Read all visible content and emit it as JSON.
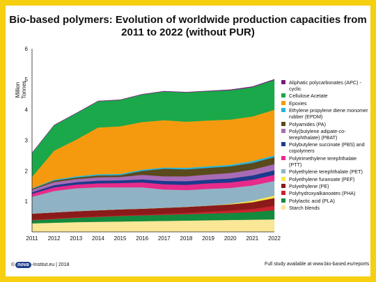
{
  "title": "Bio-based polymers: Evolution of worldwide production capacities from 2011 to 2022 (without PUR)",
  "footer": {
    "copyright": "©",
    "logo_text": "nova",
    "left_text": "-Institut.eu | 2018",
    "right_text": "Full study available at www.bio-based.eu/reports"
  },
  "chart_data": {
    "type": "area",
    "stacked": true,
    "title": "Bio-based polymers: Evolution of worldwide production capacities from 2011 to 2022 (without PUR)",
    "ylabel": "Million Tonnes",
    "xlabel": "",
    "ylim": [
      0,
      6
    ],
    "yticks": [
      1,
      2,
      3,
      4,
      5,
      6
    ],
    "x": [
      "2011",
      "2012",
      "2013",
      "2014",
      "2015",
      "2016",
      "2017",
      "2018",
      "2019",
      "2020",
      "2021",
      "2022"
    ],
    "grid": false,
    "legend_position": "right",
    "series": [
      {
        "name": "Starch blends",
        "color": "#f9e796",
        "values": [
          0.28,
          0.3,
          0.32,
          0.33,
          0.34,
          0.35,
          0.36,
          0.37,
          0.38,
          0.39,
          0.4,
          0.41
        ]
      },
      {
        "name": "Polylactic acid (PLA)",
        "color": "#138a3e",
        "values": [
          0.1,
          0.12,
          0.14,
          0.16,
          0.18,
          0.19,
          0.2,
          0.21,
          0.22,
          0.23,
          0.25,
          0.3
        ]
      },
      {
        "name": "Polyhydroxyalkanoates (PHA)",
        "color": "#c8242e",
        "values": [
          0.02,
          0.02,
          0.02,
          0.02,
          0.02,
          0.02,
          0.03,
          0.04,
          0.06,
          0.08,
          0.1,
          0.15
        ]
      },
      {
        "name": "Polyethylene (PE)",
        "color": "#8b1a1a",
        "values": [
          0.2,
          0.2,
          0.2,
          0.2,
          0.2,
          0.2,
          0.2,
          0.2,
          0.2,
          0.2,
          0.22,
          0.25
        ]
      },
      {
        "name": "Polyethylene furanoate (PEF)",
        "color": "#f7e84a",
        "values": [
          0,
          0,
          0,
          0,
          0,
          0,
          0,
          0,
          0,
          0.02,
          0.05,
          0.08
        ]
      },
      {
        "name": "Polyethylene terephthalate (PET)",
        "color": "#8fb3c4",
        "values": [
          0.55,
          0.7,
          0.75,
          0.75,
          0.72,
          0.7,
          0.6,
          0.55,
          0.55,
          0.52,
          0.5,
          0.48
        ]
      },
      {
        "name": "Polytrimethylene terephthalate (PTT)",
        "color": "#e82a8a",
        "values": [
          0.1,
          0.12,
          0.12,
          0.13,
          0.14,
          0.16,
          0.17,
          0.17,
          0.18,
          0.18,
          0.19,
          0.2
        ]
      },
      {
        "name": "Polybutylene succinate (PBS) and copolymers",
        "color": "#1d3a8c",
        "values": [
          0.05,
          0.07,
          0.08,
          0.09,
          0.09,
          0.1,
          0.11,
          0.12,
          0.12,
          0.13,
          0.14,
          0.15
        ]
      },
      {
        "name": "Poly(butylene adipate-co-terephthalate) (PBAT)",
        "color": "#a86bb5",
        "values": [
          0.08,
          0.1,
          0.1,
          0.11,
          0.11,
          0.15,
          0.15,
          0.16,
          0.17,
          0.18,
          0.19,
          0.2
        ]
      },
      {
        "name": "Polyamides (PA)",
        "color": "#5a4a1c",
        "values": [
          0.03,
          0.05,
          0.05,
          0.06,
          0.06,
          0.13,
          0.25,
          0.23,
          0.22,
          0.22,
          0.22,
          0.23
        ]
      },
      {
        "name": "Ethylene propylene diene monomer rubber (EPDM)",
        "color": "#27b5dc",
        "values": [
          0.02,
          0.03,
          0.04,
          0.04,
          0.04,
          0.04,
          0.04,
          0.05,
          0.05,
          0.05,
          0.06,
          0.06
        ]
      },
      {
        "name": "Epoxies",
        "color": "#f59a0f",
        "values": [
          0.37,
          0.95,
          1.2,
          1.53,
          1.56,
          1.56,
          1.55,
          1.51,
          1.5,
          1.48,
          1.46,
          1.49
        ]
      },
      {
        "name": "Cellulose Acetate",
        "color": "#1aa84a",
        "values": [
          0.78,
          0.83,
          0.86,
          0.86,
          0.86,
          0.9,
          0.94,
          0.96,
          0.96,
          0.96,
          0.96,
          0.98
        ]
      },
      {
        "name": "Aliphatic polycarbonates (APC) - cyclic",
        "color": "#7a1a7a",
        "values": [
          0.01,
          0.01,
          0.01,
          0.01,
          0.01,
          0.01,
          0.01,
          0.01,
          0.01,
          0.02,
          0.02,
          0.02
        ]
      }
    ]
  }
}
